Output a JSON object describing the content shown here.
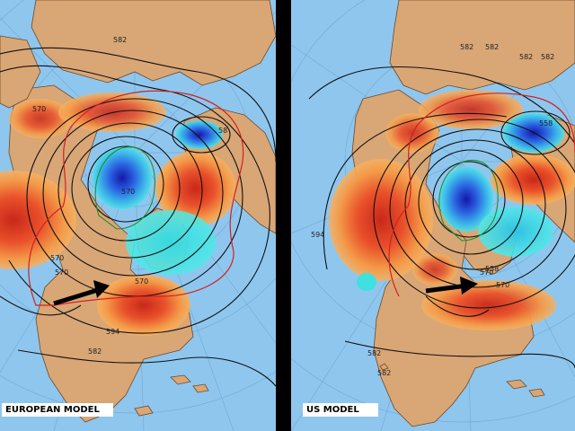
{
  "colors": {
    "ocean": "#8fc6ee",
    "land": "#d9a676",
    "border": "#6b4a2a",
    "warm_light": "#f7a24a",
    "warm_mid": "#f0702a",
    "warm_dark": "#d43a1e",
    "cold_light": "#40e0e0",
    "cold_mid": "#3a9ee8",
    "cold_dark": "#1a2ec8",
    "contour": "#111111",
    "contour_red": "#d42020",
    "contour_green": "#1f8f2f"
  },
  "left_panel": {
    "label": "EUROPEAN MODEL",
    "contour_labels": [
      "582",
      "570",
      "570",
      "570",
      "570",
      "570",
      "582",
      "594",
      "58"
    ]
  },
  "right_panel": {
    "label": "US MODEL",
    "contour_labels": [
      "582",
      "582",
      "582",
      "582",
      "558",
      "594",
      "570",
      "570",
      "558",
      "582",
      "582"
    ]
  }
}
